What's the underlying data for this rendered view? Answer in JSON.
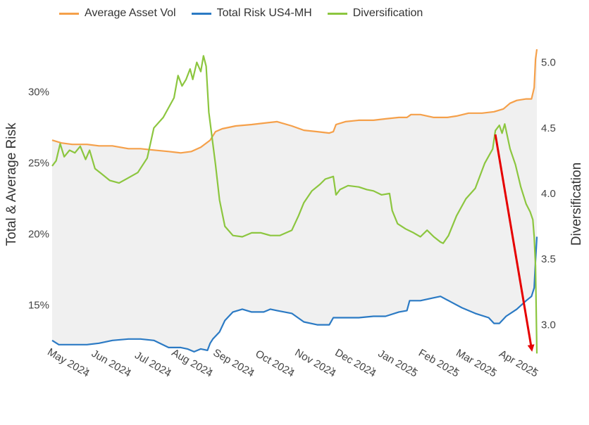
{
  "legend": {
    "items": [
      {
        "name": "Average Asset Vol",
        "color": "#f5a04a"
      },
      {
        "name": "Total Risk US4-MH",
        "color": "#2b7ac4"
      },
      {
        "name": "Diversification",
        "color": "#8cc63f"
      }
    ]
  },
  "chart_data": {
    "type": "line",
    "x_axis": {
      "type": "date",
      "range": [
        "2024-04-05",
        "2025-04-02"
      ],
      "ticks": [
        {
          "date": "2024-05-01",
          "label": "May 2024"
        },
        {
          "date": "2024-06-01",
          "label": "Jun 2024"
        },
        {
          "date": "2024-07-01",
          "label": "Jul 2024"
        },
        {
          "date": "2024-08-01",
          "label": "Aug 2024"
        },
        {
          "date": "2024-09-01",
          "label": "Sep 2024"
        },
        {
          "date": "2024-10-01",
          "label": "Oct 2024"
        },
        {
          "date": "2024-11-01",
          "label": "Nov 2024"
        },
        {
          "date": "2024-12-01",
          "label": "Dec 2024"
        },
        {
          "date": "2025-01-01",
          "label": "Jan 2025"
        },
        {
          "date": "2025-02-01",
          "label": "Feb 2025"
        },
        {
          "date": "2025-03-01",
          "label": "Mar 2025"
        },
        {
          "date": "2025-04-01",
          "label": "Apr 2025"
        }
      ]
    },
    "y_left": {
      "title": "Total & Average Risk",
      "range": [
        0.113,
        0.33
      ],
      "ticks": [
        {
          "value": 0.15,
          "label": "15%"
        },
        {
          "value": 0.2,
          "label": "20%"
        },
        {
          "value": 0.25,
          "label": "25%"
        },
        {
          "value": 0.3,
          "label": "30%"
        }
      ]
    },
    "y_right": {
      "title": "Diversification",
      "range": [
        2.75,
        5.1
      ],
      "ticks": [
        {
          "value": 3.0,
          "label": "3.0"
        },
        {
          "value": 3.5,
          "label": "3.5"
        },
        {
          "value": 4.0,
          "label": "4.0"
        },
        {
          "value": 4.5,
          "label": "4.5"
        },
        {
          "value": 5.0,
          "label": "5.0"
        }
      ]
    },
    "fill_between": {
      "upper": "Average Asset Vol",
      "lower": "Total Risk US4-MH",
      "color": "#f0f0f0"
    },
    "series": [
      {
        "name": "Average Asset Vol",
        "axis": "left",
        "color": "#f5a04a",
        "points": [
          [
            "2024-04-05",
            0.266
          ],
          [
            "2024-04-12",
            0.264
          ],
          [
            "2024-04-20",
            0.263
          ],
          [
            "2024-05-01",
            0.263
          ],
          [
            "2024-05-10",
            0.262
          ],
          [
            "2024-05-20",
            0.262
          ],
          [
            "2024-06-01",
            0.26
          ],
          [
            "2024-06-10",
            0.26
          ],
          [
            "2024-06-20",
            0.259
          ],
          [
            "2024-07-01",
            0.258
          ],
          [
            "2024-07-10",
            0.257
          ],
          [
            "2024-07-18",
            0.258
          ],
          [
            "2024-07-25",
            0.261
          ],
          [
            "2024-08-01",
            0.266
          ],
          [
            "2024-08-05",
            0.272
          ],
          [
            "2024-08-10",
            0.274
          ],
          [
            "2024-08-20",
            0.276
          ],
          [
            "2024-09-01",
            0.277
          ],
          [
            "2024-09-10",
            0.278
          ],
          [
            "2024-09-20",
            0.279
          ],
          [
            "2024-10-01",
            0.276
          ],
          [
            "2024-10-10",
            0.273
          ],
          [
            "2024-10-20",
            0.272
          ],
          [
            "2024-10-29",
            0.271
          ],
          [
            "2024-11-01",
            0.272
          ],
          [
            "2024-11-03",
            0.277
          ],
          [
            "2024-11-10",
            0.279
          ],
          [
            "2024-11-20",
            0.28
          ],
          [
            "2024-12-01",
            0.28
          ],
          [
            "2024-12-10",
            0.281
          ],
          [
            "2024-12-20",
            0.282
          ],
          [
            "2024-12-26",
            0.282
          ],
          [
            "2024-12-29",
            0.284
          ],
          [
            "2025-01-05",
            0.284
          ],
          [
            "2025-01-15",
            0.282
          ],
          [
            "2025-01-25",
            0.282
          ],
          [
            "2025-02-01",
            0.283
          ],
          [
            "2025-02-10",
            0.285
          ],
          [
            "2025-02-20",
            0.285
          ],
          [
            "2025-03-01",
            0.286
          ],
          [
            "2025-03-08",
            0.288
          ],
          [
            "2025-03-13",
            0.292
          ],
          [
            "2025-03-18",
            0.294
          ],
          [
            "2025-03-25",
            0.295
          ],
          [
            "2025-03-29",
            0.295
          ],
          [
            "2025-03-31",
            0.303
          ],
          [
            "2025-04-01",
            0.323
          ],
          [
            "2025-04-02",
            0.33
          ]
        ]
      },
      {
        "name": "Total Risk US4-MH",
        "axis": "left",
        "color": "#2b7ac4",
        "points": [
          [
            "2024-04-05",
            0.125
          ],
          [
            "2024-04-10",
            0.122
          ],
          [
            "2024-04-20",
            0.122
          ],
          [
            "2024-05-01",
            0.122
          ],
          [
            "2024-05-10",
            0.123
          ],
          [
            "2024-05-20",
            0.125
          ],
          [
            "2024-06-01",
            0.126
          ],
          [
            "2024-06-10",
            0.126
          ],
          [
            "2024-06-20",
            0.125
          ],
          [
            "2024-07-01",
            0.12
          ],
          [
            "2024-07-10",
            0.12
          ],
          [
            "2024-07-15",
            0.119
          ],
          [
            "2024-07-20",
            0.117
          ],
          [
            "2024-07-25",
            0.119
          ],
          [
            "2024-07-30",
            0.118
          ],
          [
            "2024-08-01",
            0.123
          ],
          [
            "2024-08-03",
            0.126
          ],
          [
            "2024-08-08",
            0.131
          ],
          [
            "2024-08-12",
            0.139
          ],
          [
            "2024-08-18",
            0.145
          ],
          [
            "2024-08-25",
            0.147
          ],
          [
            "2024-09-01",
            0.145
          ],
          [
            "2024-09-10",
            0.145
          ],
          [
            "2024-09-15",
            0.147
          ],
          [
            "2024-09-20",
            0.146
          ],
          [
            "2024-10-01",
            0.144
          ],
          [
            "2024-10-10",
            0.138
          ],
          [
            "2024-10-20",
            0.136
          ],
          [
            "2024-10-29",
            0.136
          ],
          [
            "2024-11-01",
            0.141
          ],
          [
            "2024-11-10",
            0.141
          ],
          [
            "2024-11-20",
            0.141
          ],
          [
            "2024-12-01",
            0.142
          ],
          [
            "2024-12-10",
            0.142
          ],
          [
            "2024-12-20",
            0.145
          ],
          [
            "2024-12-26",
            0.146
          ],
          [
            "2024-12-28",
            0.153
          ],
          [
            "2025-01-05",
            0.153
          ],
          [
            "2025-01-15",
            0.155
          ],
          [
            "2025-01-20",
            0.156
          ],
          [
            "2025-01-28",
            0.152
          ],
          [
            "2025-02-05",
            0.148
          ],
          [
            "2025-02-15",
            0.144
          ],
          [
            "2025-02-25",
            0.141
          ],
          [
            "2025-03-01",
            0.137
          ],
          [
            "2025-03-05",
            0.137
          ],
          [
            "2025-03-10",
            0.142
          ],
          [
            "2025-03-18",
            0.147
          ],
          [
            "2025-03-25",
            0.153
          ],
          [
            "2025-03-29",
            0.156
          ],
          [
            "2025-03-31",
            0.162
          ],
          [
            "2025-04-01",
            0.181
          ],
          [
            "2025-04-02",
            0.198
          ]
        ]
      },
      {
        "name": "Diversification",
        "axis": "right",
        "color": "#8cc63f",
        "points": [
          [
            "2024-04-05",
            4.21
          ],
          [
            "2024-04-08",
            4.25
          ],
          [
            "2024-04-11",
            4.38
          ],
          [
            "2024-04-14",
            4.28
          ],
          [
            "2024-04-18",
            4.33
          ],
          [
            "2024-04-22",
            4.31
          ],
          [
            "2024-04-26",
            4.36
          ],
          [
            "2024-04-30",
            4.26
          ],
          [
            "2024-05-03",
            4.33
          ],
          [
            "2024-05-07",
            4.19
          ],
          [
            "2024-05-12",
            4.15
          ],
          [
            "2024-05-18",
            4.1
          ],
          [
            "2024-05-25",
            4.08
          ],
          [
            "2024-06-01",
            4.12
          ],
          [
            "2024-06-08",
            4.16
          ],
          [
            "2024-06-15",
            4.27
          ],
          [
            "2024-06-20",
            4.5
          ],
          [
            "2024-06-27",
            4.58
          ],
          [
            "2024-07-05",
            4.73
          ],
          [
            "2024-07-08",
            4.9
          ],
          [
            "2024-07-11",
            4.82
          ],
          [
            "2024-07-14",
            4.87
          ],
          [
            "2024-07-17",
            4.95
          ],
          [
            "2024-07-19",
            4.87
          ],
          [
            "2024-07-22",
            5.0
          ],
          [
            "2024-07-25",
            4.93
          ],
          [
            "2024-07-27",
            5.05
          ],
          [
            "2024-07-29",
            4.97
          ],
          [
            "2024-07-31",
            4.62
          ],
          [
            "2024-08-03",
            4.38
          ],
          [
            "2024-08-05",
            4.22
          ],
          [
            "2024-08-08",
            3.95
          ],
          [
            "2024-08-12",
            3.75
          ],
          [
            "2024-08-18",
            3.68
          ],
          [
            "2024-08-25",
            3.67
          ],
          [
            "2024-09-01",
            3.7
          ],
          [
            "2024-09-08",
            3.7
          ],
          [
            "2024-09-15",
            3.68
          ],
          [
            "2024-09-22",
            3.68
          ],
          [
            "2024-10-01",
            3.72
          ],
          [
            "2024-10-06",
            3.83
          ],
          [
            "2024-10-10",
            3.93
          ],
          [
            "2024-10-16",
            4.02
          ],
          [
            "2024-10-22",
            4.07
          ],
          [
            "2024-10-26",
            4.11
          ],
          [
            "2024-11-01",
            4.13
          ],
          [
            "2024-11-03",
            3.99
          ],
          [
            "2024-11-06",
            4.03
          ],
          [
            "2024-11-12",
            4.06
          ],
          [
            "2024-11-20",
            4.05
          ],
          [
            "2024-11-26",
            4.03
          ],
          [
            "2024-12-01",
            4.02
          ],
          [
            "2024-12-07",
            3.99
          ],
          [
            "2024-12-13",
            4.0
          ],
          [
            "2024-12-15",
            3.87
          ],
          [
            "2024-12-19",
            3.77
          ],
          [
            "2024-12-25",
            3.73
          ],
          [
            "2024-12-31",
            3.7
          ],
          [
            "2025-01-05",
            3.67
          ],
          [
            "2025-01-10",
            3.72
          ],
          [
            "2025-01-15",
            3.67
          ],
          [
            "2025-01-20",
            3.63
          ],
          [
            "2025-01-22",
            3.62
          ],
          [
            "2025-01-26",
            3.68
          ],
          [
            "2025-02-01",
            3.83
          ],
          [
            "2025-02-08",
            3.96
          ],
          [
            "2025-02-15",
            4.04
          ],
          [
            "2025-02-22",
            4.23
          ],
          [
            "2025-02-28",
            4.34
          ],
          [
            "2025-03-02",
            4.48
          ],
          [
            "2025-03-05",
            4.52
          ],
          [
            "2025-03-07",
            4.46
          ],
          [
            "2025-03-09",
            4.53
          ],
          [
            "2025-03-13",
            4.34
          ],
          [
            "2025-03-17",
            4.22
          ],
          [
            "2025-03-21",
            4.05
          ],
          [
            "2025-03-25",
            3.92
          ],
          [
            "2025-03-28",
            3.86
          ],
          [
            "2025-03-30",
            3.8
          ],
          [
            "2025-03-31",
            3.67
          ],
          [
            "2025-04-01",
            3.45
          ],
          [
            "2025-04-02",
            2.78
          ]
        ]
      }
    ],
    "annotation": {
      "type": "arrow",
      "color": "#e60000",
      "from": [
        "2025-03-02",
        4.45
      ],
      "to": [
        "2025-03-29",
        2.82
      ],
      "axis": "right"
    }
  }
}
